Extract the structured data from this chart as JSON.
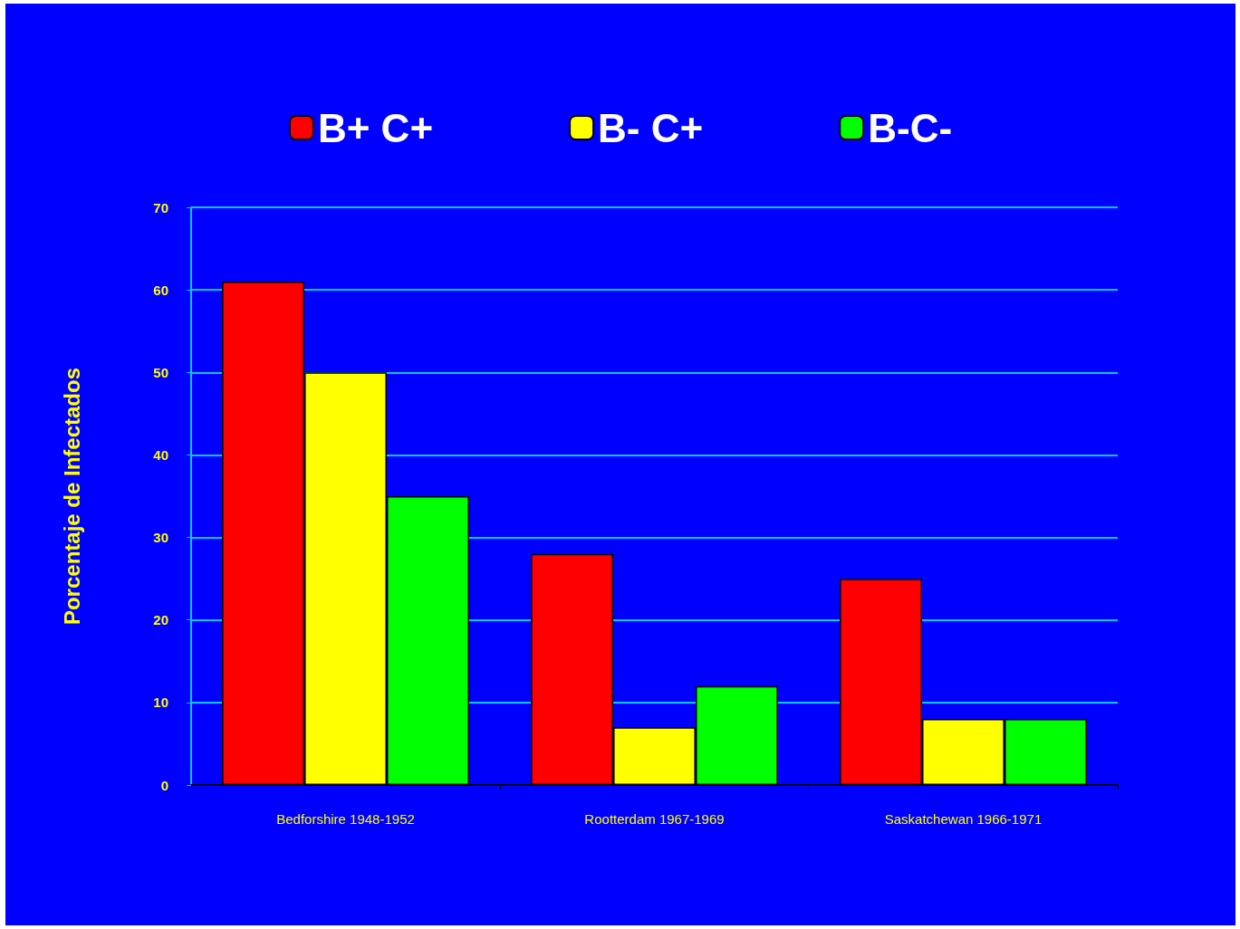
{
  "chart_data": {
    "type": "bar",
    "ylabel": "Porcentaje de Infectados",
    "categories": [
      "Bedforshire 1948-1952",
      "Rootterdam 1967-1969",
      "Saskatchewan 1966-1971"
    ],
    "series": [
      {
        "name": "B+ C+",
        "color": "#ff0000",
        "values": [
          61,
          28,
          25
        ]
      },
      {
        "name": "B- C+",
        "color": "#ffff00",
        "values": [
          50,
          7,
          8
        ]
      },
      {
        "name": "B-C-",
        "color": "#00ff00",
        "values": [
          35,
          12,
          8
        ]
      }
    ],
    "ylim": [
      0,
      70
    ],
    "yticks": [
      0,
      10,
      20,
      30,
      40,
      50,
      60,
      70
    ],
    "grid": "y",
    "legend": "top"
  }
}
